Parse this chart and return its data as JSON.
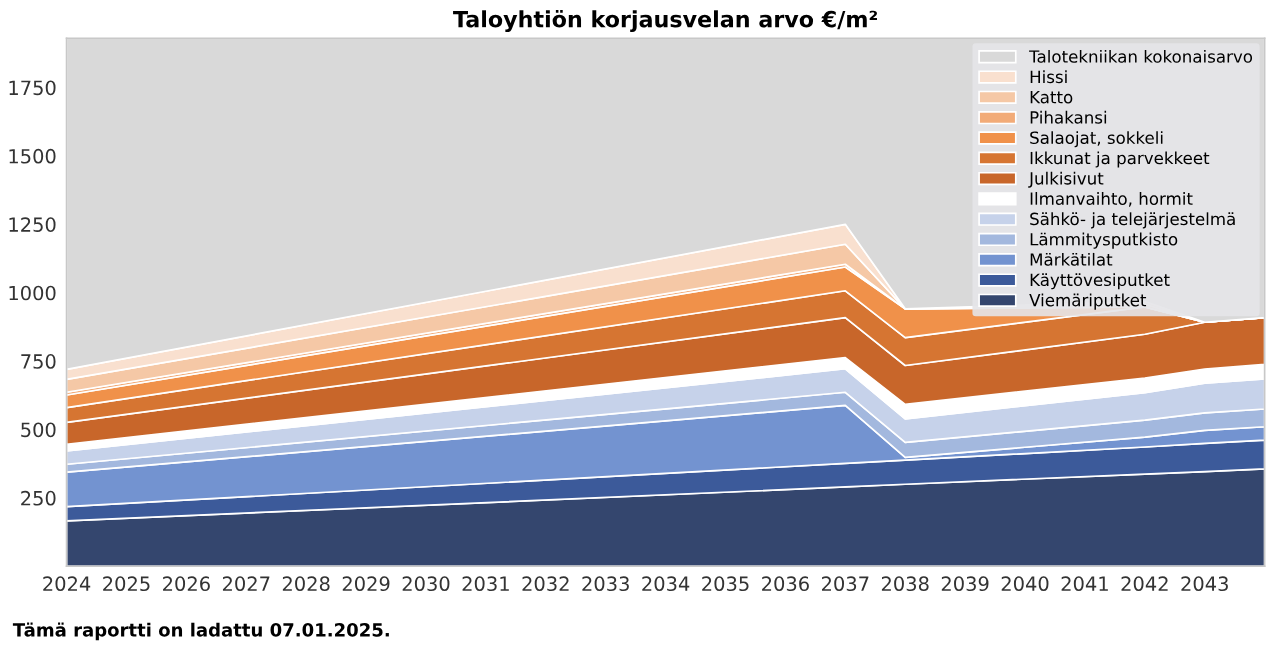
{
  "chart_data": {
    "type": "area",
    "stacked": true,
    "title": "Taloyhtiön korjausvelan arvo €/m²",
    "annotations": [
      "Tämä raportti on ladattu 07.01.2025."
    ],
    "x": [
      2024,
      2037,
      2038,
      2042,
      2043,
      2044
    ],
    "xlim": [
      2024,
      2044
    ],
    "xticks": [
      2024,
      2025,
      2026,
      2027,
      2028,
      2029,
      2030,
      2031,
      2032,
      2033,
      2034,
      2035,
      2036,
      2037,
      2038,
      2039,
      2040,
      2041,
      2042,
      2043
    ],
    "ylim": [
      0,
      1930
    ],
    "yticks": [
      250,
      500,
      750,
      1000,
      1250,
      1500,
      1750
    ],
    "legend": "top right",
    "series": [
      {
        "name": "Viemäriputket",
        "color": "#34466e",
        "values": [
          166,
          290,
          300,
          337,
          346,
          356
        ]
      },
      {
        "name": "Käyttövesiputket",
        "color": "#3c5a9a",
        "values": [
          52,
          86,
          88,
          99,
          103,
          105
        ]
      },
      {
        "name": "Märkätilat",
        "color": "#7393d0",
        "values": [
          126,
          212,
          10,
          36,
          48,
          49
        ]
      },
      {
        "name": "Lämmitysputkisto",
        "color": "#a3b8de",
        "values": [
          29,
          48,
          55,
          62,
          64,
          65
        ]
      },
      {
        "name": "Sähkö- ja telejärjestelmä",
        "color": "#c6d2ea",
        "values": [
          49,
          86,
          86,
          101,
          108,
          110
        ]
      },
      {
        "name": "Ilmanvaihto, hormit",
        "color": "#ffffff",
        "values": [
          24,
          41,
          53,
          53,
          52,
          53
        ]
      },
      {
        "name": "Julkisivut",
        "color": "#c8662a",
        "values": [
          80,
          146,
          142,
          160,
          171,
          171
        ]
      },
      {
        "name": "Ikkunat ja parvekkeet",
        "color": "#d67532",
        "values": [
          54,
          98,
          102,
          100,
          0,
          0
        ]
      },
      {
        "name": "Salaojat, sokkeli",
        "color": "#f0914a",
        "values": [
          46,
          87,
          105,
          0,
          0,
          0
        ]
      },
      {
        "name": "Pihakansi",
        "color": "#f2ab78",
        "values": [
          10,
          10,
          0,
          0,
          0,
          0
        ]
      },
      {
        "name": "Katto",
        "color": "#f5c8a6",
        "values": [
          47,
          73,
          0,
          10,
          0,
          0
        ]
      },
      {
        "name": "Hissi",
        "color": "#f9e0cf",
        "values": [
          37,
          73,
          0,
          10,
          0,
          0
        ]
      },
      {
        "name": "Talotekniikan kokonaisarvo",
        "color": "#d9d9d9",
        "values": [
          1210,
          680,
          989,
          962,
          1038,
          1021
        ]
      }
    ]
  }
}
